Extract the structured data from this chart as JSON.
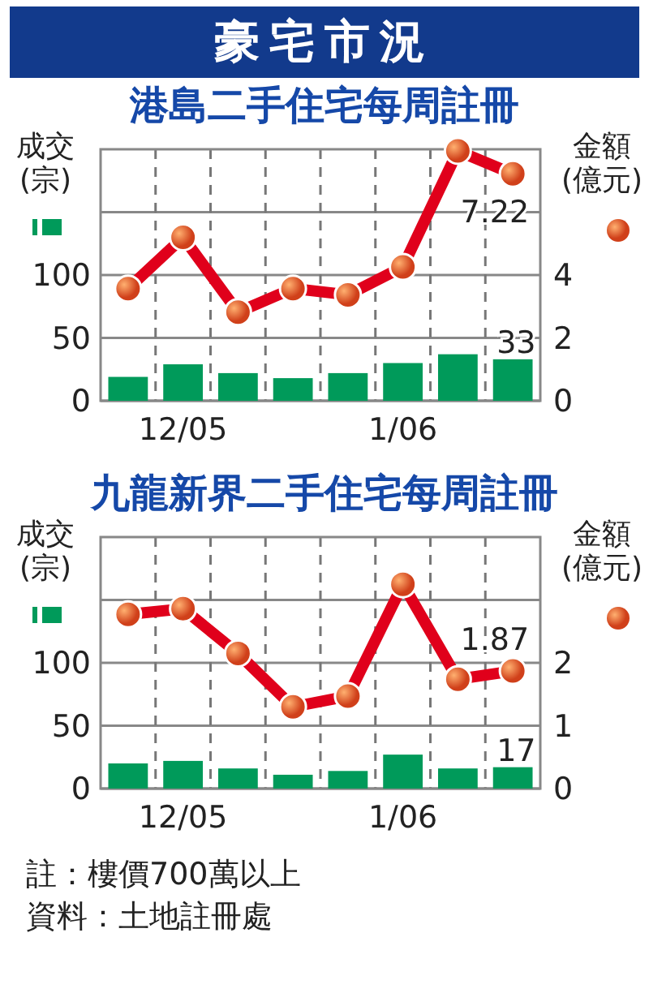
{
  "chart_data": [
    {
      "type": "bar",
      "title": "豪宅市況",
      "subtitle": "港島二手住宅每周註冊",
      "ylabel": "成交(宗)",
      "y2label": "金額(億元)",
      "categories": [
        null,
        "12/05",
        null,
        null,
        null,
        "1/06",
        null,
        null
      ],
      "ylim": [
        0,
        200
      ],
      "yticks": [
        0,
        50,
        100,
        {
          "value": 150,
          "label": null
        }
      ],
      "y2lim": [
        0,
        8
      ],
      "y2ticks": [
        0,
        2,
        4
      ],
      "grid": true,
      "series": [
        {
          "type": "bar",
          "color": "#009a5a",
          "values": [
            19,
            29,
            22,
            18,
            22,
            30,
            37,
            33
          ],
          "value_labels": [
            null,
            null,
            null,
            null,
            null,
            null,
            null,
            "33"
          ]
        },
        {
          "type": "line",
          "axis": "y2",
          "color": "#e0001b",
          "marker": "circle",
          "values": [
            3.57,
            5.2,
            2.82,
            3.57,
            3.37,
            4.26,
            7.95,
            7.22
          ],
          "value_labels": [
            null,
            null,
            null,
            null,
            null,
            null,
            null,
            "7.22"
          ]
        }
      ]
    },
    {
      "type": "bar",
      "title": "九龍新界二手住宅每周註冊",
      "ylabel": "成交(宗)",
      "y2label": "金額(億元)",
      "categories": [
        null,
        "12/05",
        null,
        null,
        null,
        "1/06",
        null,
        null
      ],
      "ylim": [
        0,
        200
      ],
      "yticks": [
        0,
        50,
        100,
        {
          "value": 150,
          "label": null
        }
      ],
      "y2lim": [
        0,
        4
      ],
      "y2ticks": [
        0,
        1,
        2
      ],
      "grid": true,
      "series": [
        {
          "type": "bar",
          "color": "#009a5a",
          "values": [
            20,
            22,
            16,
            11,
            14,
            27,
            16,
            17
          ],
          "value_labels": [
            null,
            null,
            null,
            null,
            null,
            null,
            null,
            "17"
          ]
        },
        {
          "type": "line",
          "axis": "y2",
          "color": "#e0001b",
          "marker": "circle",
          "values": [
            2.77,
            2.86,
            2.15,
            1.3,
            1.47,
            3.25,
            1.74,
            1.87
          ],
          "value_labels": [
            null,
            null,
            null,
            null,
            null,
            null,
            null,
            "1.87"
          ]
        }
      ],
      "annotations": [
        "註：樓價700萬以上",
        "資料：土地註冊處"
      ]
    }
  ]
}
